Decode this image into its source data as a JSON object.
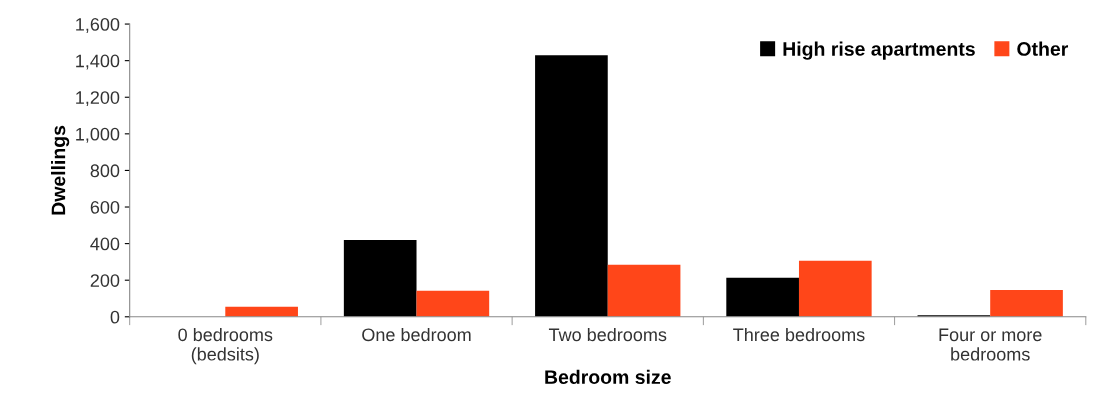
{
  "chart_data": {
    "type": "bar",
    "xlabel": "Bedroom size",
    "ylabel": "Dwellings",
    "categories": [
      "0 bedrooms\n(bedsits)",
      "One bedroom",
      "Two bedrooms",
      "Three bedrooms",
      "Four or more\nbedrooms"
    ],
    "series": [
      {
        "name": "High rise apartments",
        "color": "#000000",
        "values": [
          0,
          420,
          1430,
          213,
          8
        ]
      },
      {
        "name": "Other",
        "color": "#ff4619",
        "values": [
          55,
          142,
          284,
          306,
          147
        ]
      }
    ],
    "ylim": [
      0,
      1600
    ],
    "yticks": [
      0,
      {
        "value": 200,
        "label": "200"
      },
      {
        "value": 400,
        "label": "400"
      },
      {
        "value": 600,
        "label": "600"
      },
      {
        "value": 800,
        "label": "800"
      },
      {
        "value": 1000,
        "label": "1,000"
      },
      {
        "value": 1200,
        "label": "1,200"
      },
      {
        "value": 1400,
        "label": "1,400"
      },
      {
        "value": 1600,
        "label": "1,600"
      }
    ],
    "grid": false,
    "legend": "top right"
  }
}
